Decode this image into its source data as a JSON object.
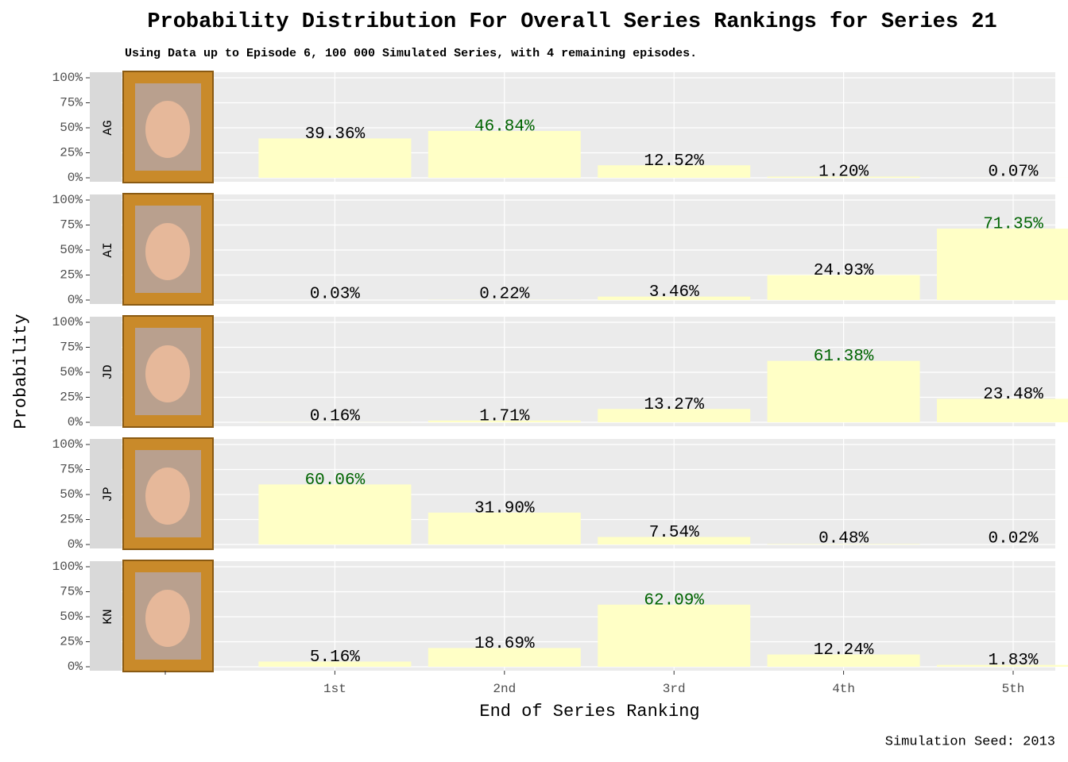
{
  "chart_data": {
    "type": "bar",
    "title": "Probability Distribution For Overall Series Rankings for Series 21",
    "subtitle": "Using Data up to Episode 6, 100 000 Simulated Series, with 4 remaining episodes.",
    "x_label": "End of Series Ranking",
    "y_label": "Probability",
    "caption": "Simulation Seed: 2013",
    "categories": [
      null,
      "1st",
      "2nd",
      "3rd",
      "4th",
      "5th"
    ],
    "color": "#ffffc6",
    "highlight_color": "#006400",
    "grid": true,
    "ylim": [
      0,
      100
    ],
    "yticks": [
      {
        "value": 0,
        "label": "0%"
      },
      {
        "value": 25,
        "label": "25%"
      },
      {
        "value": 50,
        "label": "50%"
      },
      {
        "value": 75,
        "label": "75%"
      },
      {
        "value": 100,
        "label": "100%"
      }
    ],
    "panels": [
      {
        "name": "AG",
        "values": [
          null,
          39.36,
          46.84,
          12.52,
          1.2,
          0.07
        ],
        "value_labels": [
          null,
          "39.36%",
          "46.84%",
          "12.52%",
          "1.20%",
          "0.07%"
        ]
      },
      {
        "name": "AI",
        "values": [
          null,
          0.03,
          0.22,
          3.46,
          24.93,
          71.35
        ],
        "value_labels": [
          null,
          "0.03%",
          "0.22%",
          "3.46%",
          "24.93%",
          "71.35%"
        ]
      },
      {
        "name": "JD",
        "values": [
          null,
          0.16,
          1.71,
          13.27,
          61.38,
          23.48
        ],
        "value_labels": [
          null,
          "0.16%",
          "1.71%",
          "13.27%",
          "61.38%",
          "23.48%"
        ]
      },
      {
        "name": "JP",
        "values": [
          null,
          60.06,
          31.9,
          7.54,
          0.48,
          0.02
        ],
        "value_labels": [
          null,
          "60.06%",
          "31.90%",
          "7.54%",
          "0.48%",
          "0.02%"
        ]
      },
      {
        "name": "KN",
        "values": [
          null,
          5.16,
          18.69,
          62.09,
          12.24,
          1.83
        ],
        "value_labels": [
          null,
          "5.16%",
          "18.69%",
          "62.09%",
          "12.24%",
          "1.83%"
        ]
      }
    ]
  }
}
